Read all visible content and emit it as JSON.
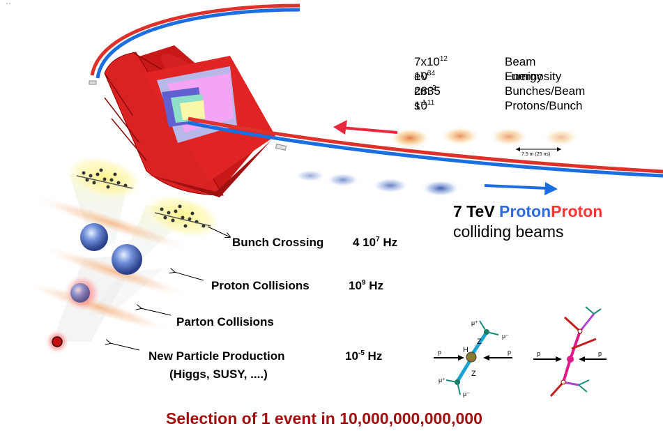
{
  "beam_parameters": [
    {
      "value_base": "7x10",
      "value_sup": "12",
      "value_tail": " eV",
      "label": "Beam Energy"
    },
    {
      "value_base": "10",
      "value_sup": "34",
      "value_tail": " cm",
      "value_sup2": "-2",
      "value_tail2": " s",
      "value_sup3": "-1",
      "label": "Luminosity"
    },
    {
      "value_base": "2835",
      "value_sup": "",
      "value_tail": "",
      "label": "Bunches/Beam"
    },
    {
      "value_base": "10",
      "value_sup": "11",
      "value_tail": "",
      "label": "Protons/Bunch"
    }
  ],
  "bunch_spacing": "7.5 m  (25 ns)",
  "beam_title": {
    "energy": "7 TeV",
    "word1": "Proton",
    "word2": "Proton",
    "subtitle": "colliding beams"
  },
  "stages": [
    {
      "label": "Bunch Crossing",
      "rate_base": "4 10",
      "rate_sup": "7",
      "rate_tail": " Hz"
    },
    {
      "label": "Proton Collisions",
      "rate_base": "10",
      "rate_sup": "9",
      "rate_tail": " Hz"
    },
    {
      "label": "Parton Collisions",
      "rate_base": "",
      "rate_sup": "",
      "rate_tail": ""
    },
    {
      "label": "New Particle Production",
      "sublabel": "(Higgs, SUSY, ....)",
      "rate_base": "10",
      "rate_sup": "-5",
      "rate_tail": "  Hz"
    }
  ],
  "selection": "Selection of 1 event in 10,000,000,000,000",
  "feynman_left": {
    "p_left": "p",
    "p_right": "p",
    "higgs": "H",
    "z_top": "Z",
    "z_bottom": "Z",
    "mu_plus_top": "μ⁺",
    "mu_minus_top": "μ⁻",
    "mu_plus_bottom": "μ⁺",
    "mu_minus_bottom": "μ⁻"
  },
  "feynman_right": {
    "p_left": "p",
    "p_right": "p"
  },
  "colors": {
    "red_beam": "#e0302a",
    "blue_beam": "#1a6ee0",
    "selection": "#a01010",
    "proton_blue": "#2f6be0",
    "proton_red": "#ff3333"
  }
}
